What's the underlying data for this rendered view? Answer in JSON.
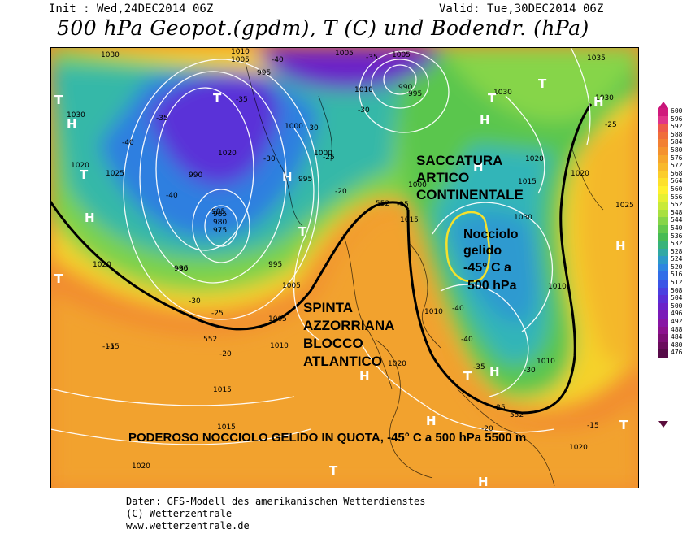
{
  "header": {
    "init": "Init : Wed,24DEC2014 06Z",
    "valid": "Valid: Tue,30DEC2014 06Z",
    "title": "500 hPa Geopot.(gpdm), T (C) und Bodendr. (hPa)"
  },
  "annotations": {
    "saccatura": [
      "SACCATURA",
      "ARTICO",
      "CONTINENTALE"
    ],
    "nocciolo": [
      "Nocciolo",
      "gelido",
      "-45° C a",
      "500 hPa"
    ],
    "spinta": [
      "SPINTA",
      "AZZORRIANA",
      "BLOCCO",
      "ATLANTICO"
    ],
    "bottom": "PODEROSO NOCCIOLO GELIDO IN QUOTA, -45° C a 500 hPa 5500 m"
  },
  "isobars": [
    "1030",
    "1005",
    "1010",
    "995",
    "985",
    "990",
    "1020",
    "1005",
    "990",
    "995",
    "1030",
    "1035",
    "1030",
    "1025",
    "1020",
    "1010",
    "1000",
    "995",
    "990",
    "985",
    "980",
    "975",
    "990",
    "995",
    "1000",
    "1005",
    "1010",
    "1015",
    "1020",
    "1025",
    "1030",
    "1005",
    "1015",
    "1020",
    "1025",
    "1030",
    "1035",
    "1000",
    "1005",
    "1010",
    "1015",
    "1005",
    "1010",
    "1020",
    "1020",
    "1015"
  ],
  "temps": [
    "-40",
    "-35",
    "-30",
    "-25",
    "-20",
    "-15",
    "-40",
    "-35",
    "-30",
    "-25",
    "-45",
    "-40",
    "-35",
    "-30",
    "-25",
    "-20",
    "-15",
    "-40",
    "-35",
    "-30",
    "-25",
    "-20",
    "-15",
    "-40"
  ],
  "pressure_centers": [
    "H",
    "H",
    "H",
    "H",
    "T",
    "T",
    "T",
    "T",
    "T",
    "H",
    "H",
    "T",
    "H",
    "H",
    "T",
    "T",
    "H",
    "H",
    "T",
    "H"
  ],
  "geo_labels": [
    "552",
    "552",
    "552"
  ],
  "legend": {
    "values": [
      "600",
      "596",
      "592",
      "588",
      "584",
      "580",
      "576",
      "572",
      "568",
      "564",
      "560",
      "556",
      "552",
      "548",
      "544",
      "540",
      "536",
      "532",
      "528",
      "524",
      "520",
      "516",
      "512",
      "508",
      "504",
      "500",
      "496",
      "492",
      "488",
      "484",
      "480",
      "476"
    ],
    "colors": [
      "#d01a7c",
      "#e0348a",
      "#ee5a4a",
      "#f06d3a",
      "#f28033",
      "#f4922e",
      "#f6a62c",
      "#f8b92b",
      "#fbcd2b",
      "#fde02b",
      "#fff02d",
      "#e6f031",
      "#c8ea38",
      "#a8e040",
      "#86d548",
      "#63c84d",
      "#46bb54",
      "#37b37a",
      "#30a8a4",
      "#2c99c8",
      "#2d86e0",
      "#316ee8",
      "#3a55e6",
      "#4a3fe0",
      "#5a2ed6",
      "#6a22c9",
      "#7a1ab8",
      "#8815a4",
      "#8c118e",
      "#7c0e74",
      "#6a0c5c",
      "#560a48"
    ]
  },
  "footer": {
    "line1": "Daten: GFS-Modell des amerikanischen Wetterdienstes",
    "line2": "(C) Wetterzentrale",
    "line3": "www.wetterzentrale.de"
  }
}
